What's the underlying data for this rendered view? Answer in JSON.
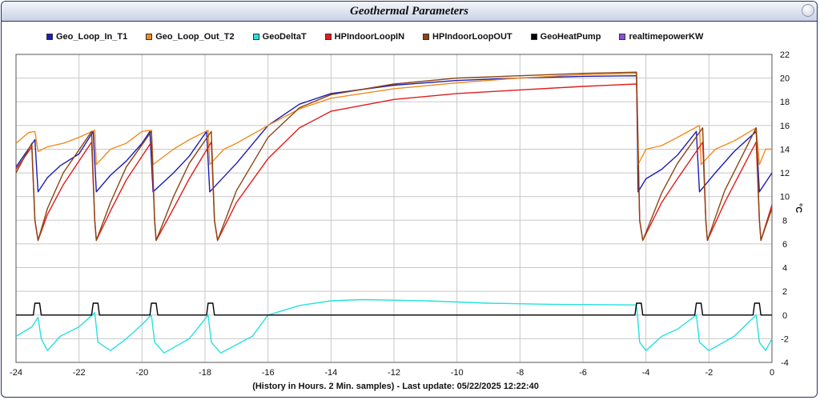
{
  "window": {
    "title": "Geothermal Parameters"
  },
  "chart_data": {
    "type": "line",
    "title": "Geothermal Parameters",
    "xlabel": "(History in Hours. 2 Min. samples) - Last update: 05/22/2025 12:22:40",
    "ylabel": "°C",
    "xlim": [
      -24,
      0
    ],
    "ylim": [
      -4,
      22
    ],
    "x_ticks": [
      -24,
      -22,
      -20,
      -18,
      -16,
      -14,
      -12,
      -10,
      -8,
      -6,
      -4,
      -2,
      0
    ],
    "y_ticks": [
      22,
      20,
      18,
      16,
      14,
      12,
      10,
      8,
      6,
      4,
      2,
      0,
      -2,
      -4
    ],
    "grid": true,
    "legend_position": "top",
    "series": [
      {
        "name": "Geo_Loop_In_T1",
        "color": "#1c1cb8",
        "points": [
          [
            -24,
            12.5
          ],
          [
            -23.4,
            14.8
          ],
          [
            -23.3,
            10.4
          ],
          [
            -23.0,
            11.6
          ],
          [
            -22.6,
            12.6
          ],
          [
            -22.0,
            13.6
          ],
          [
            -21.55,
            15.5
          ],
          [
            -21.45,
            10.4
          ],
          [
            -21.0,
            11.8
          ],
          [
            -20.5,
            13.0
          ],
          [
            -20.0,
            14.5
          ],
          [
            -19.75,
            15.5
          ],
          [
            -19.65,
            10.4
          ],
          [
            -19.0,
            12.0
          ],
          [
            -18.5,
            13.4
          ],
          [
            -17.95,
            15.5
          ],
          [
            -17.85,
            10.4
          ],
          [
            -17.0,
            12.8
          ],
          [
            -16.0,
            16.0
          ],
          [
            -15.0,
            17.8
          ],
          [
            -14.0,
            18.7
          ],
          [
            -12.0,
            19.4
          ],
          [
            -10.0,
            19.8
          ],
          [
            -8.0,
            20.0
          ],
          [
            -6.0,
            20.15
          ],
          [
            -4.3,
            20.2
          ],
          [
            -4.25,
            10.4
          ],
          [
            -4.0,
            11.5
          ],
          [
            -3.5,
            12.3
          ],
          [
            -3.0,
            13.5
          ],
          [
            -2.4,
            15.5
          ],
          [
            -2.3,
            10.4
          ],
          [
            -1.8,
            12.0
          ],
          [
            -1.2,
            13.8
          ],
          [
            -0.5,
            15.5
          ],
          [
            -0.4,
            10.4
          ],
          [
            0,
            12.0
          ]
        ]
      },
      {
        "name": "Geo_Loop_Out_T2",
        "color": "#f08c1e",
        "points": [
          [
            -24,
            14.5
          ],
          [
            -23.6,
            15.4
          ],
          [
            -23.4,
            15.5
          ],
          [
            -23.3,
            13.8
          ],
          [
            -23.0,
            14.2
          ],
          [
            -22.5,
            14.5
          ],
          [
            -22.0,
            15.0
          ],
          [
            -21.5,
            15.6
          ],
          [
            -21.45,
            12.7
          ],
          [
            -21.0,
            14.0
          ],
          [
            -20.5,
            14.5
          ],
          [
            -20.0,
            15.5
          ],
          [
            -19.7,
            15.6
          ],
          [
            -19.65,
            12.7
          ],
          [
            -19.0,
            14.0
          ],
          [
            -18.5,
            14.8
          ],
          [
            -17.9,
            15.6
          ],
          [
            -17.85,
            12.7
          ],
          [
            -17.4,
            14.0
          ],
          [
            -17.0,
            14.5
          ],
          [
            -16.0,
            16.0
          ],
          [
            -15.0,
            17.4
          ],
          [
            -14.0,
            18.3
          ],
          [
            -12.0,
            19.1
          ],
          [
            -10.0,
            19.6
          ],
          [
            -8.0,
            20.0
          ],
          [
            -6.0,
            20.3
          ],
          [
            -4.3,
            20.4
          ],
          [
            -4.25,
            12.7
          ],
          [
            -4.0,
            14.0
          ],
          [
            -3.5,
            14.3
          ],
          [
            -3.0,
            15.0
          ],
          [
            -2.3,
            16.0
          ],
          [
            -2.25,
            12.7
          ],
          [
            -1.8,
            14.0
          ],
          [
            -1.2,
            14.7
          ],
          [
            -0.5,
            15.8
          ],
          [
            -0.4,
            12.7
          ],
          [
            -0.2,
            14.0
          ],
          [
            0,
            14.0
          ]
        ]
      },
      {
        "name": "GeoDeltaT",
        "color": "#26e0e0",
        "points": [
          [
            -24,
            -1.8
          ],
          [
            -23.5,
            -1.0
          ],
          [
            -23.3,
            -0.2
          ],
          [
            -23.2,
            -2.0
          ],
          [
            -23.0,
            -3.0
          ],
          [
            -22.6,
            -1.8
          ],
          [
            -22.0,
            -1.0
          ],
          [
            -21.5,
            0.2
          ],
          [
            -21.4,
            -2.3
          ],
          [
            -21.0,
            -3.0
          ],
          [
            -20.5,
            -2.0
          ],
          [
            -20.0,
            -0.8
          ],
          [
            -19.7,
            0.0
          ],
          [
            -19.6,
            -2.3
          ],
          [
            -19.3,
            -3.2
          ],
          [
            -18.5,
            -2.0
          ],
          [
            -17.9,
            0.0
          ],
          [
            -17.8,
            -2.3
          ],
          [
            -17.5,
            -3.2
          ],
          [
            -16.5,
            -1.8
          ],
          [
            -16.0,
            0.0
          ],
          [
            -15.0,
            0.8
          ],
          [
            -14.0,
            1.2
          ],
          [
            -13.0,
            1.3
          ],
          [
            -11.0,
            1.2
          ],
          [
            -9.0,
            1.0
          ],
          [
            -7.0,
            0.9
          ],
          [
            -4.3,
            0.85
          ],
          [
            -4.2,
            -2.3
          ],
          [
            -4.0,
            -3.0
          ],
          [
            -3.5,
            -1.8
          ],
          [
            -3.0,
            -1.2
          ],
          [
            -2.4,
            0.0
          ],
          [
            -2.3,
            -2.3
          ],
          [
            -2.0,
            -3.0
          ],
          [
            -1.2,
            -1.8
          ],
          [
            -0.5,
            0.0
          ],
          [
            -0.4,
            -2.3
          ],
          [
            -0.2,
            -3.0
          ],
          [
            0,
            -2.0
          ]
        ]
      },
      {
        "name": "HPIndoorLoopIN",
        "color": "#e01c1c",
        "points": [
          [
            -24,
            12.3
          ],
          [
            -23.5,
            14.2
          ],
          [
            -23.4,
            8.0
          ],
          [
            -23.3,
            6.3
          ],
          [
            -23.0,
            8.5
          ],
          [
            -22.5,
            11.0
          ],
          [
            -21.6,
            14.6
          ],
          [
            -21.5,
            8.0
          ],
          [
            -21.45,
            6.3
          ],
          [
            -21.0,
            8.8
          ],
          [
            -20.5,
            11.4
          ],
          [
            -19.7,
            14.6
          ],
          [
            -19.6,
            8.0
          ],
          [
            -19.55,
            6.3
          ],
          [
            -19.0,
            9.0
          ],
          [
            -18.5,
            11.5
          ],
          [
            -17.8,
            14.6
          ],
          [
            -17.7,
            8.0
          ],
          [
            -17.6,
            6.3
          ],
          [
            -17.0,
            9.5
          ],
          [
            -16.0,
            13.2
          ],
          [
            -15.0,
            15.8
          ],
          [
            -14.0,
            17.2
          ],
          [
            -12.0,
            18.2
          ],
          [
            -10.0,
            18.7
          ],
          [
            -8.0,
            19.0
          ],
          [
            -6.0,
            19.3
          ],
          [
            -4.3,
            19.5
          ],
          [
            -4.2,
            8.0
          ],
          [
            -4.1,
            6.3
          ],
          [
            -3.5,
            9.5
          ],
          [
            -3.0,
            11.5
          ],
          [
            -2.2,
            14.6
          ],
          [
            -2.1,
            8.0
          ],
          [
            -2.05,
            6.3
          ],
          [
            -1.5,
            9.5
          ],
          [
            -0.5,
            14.6
          ],
          [
            -0.4,
            8.0
          ],
          [
            -0.35,
            6.3
          ],
          [
            0,
            9.3
          ]
        ]
      },
      {
        "name": "HPIndoorLoopOUT",
        "color": "#8b4513",
        "points": [
          [
            -24,
            12.0
          ],
          [
            -23.5,
            14.5
          ],
          [
            -23.4,
            8.0
          ],
          [
            -23.3,
            6.3
          ],
          [
            -23.0,
            9.0
          ],
          [
            -22.5,
            12.0
          ],
          [
            -21.6,
            15.5
          ],
          [
            -21.5,
            8.0
          ],
          [
            -21.45,
            6.3
          ],
          [
            -21.0,
            9.5
          ],
          [
            -20.5,
            12.5
          ],
          [
            -19.7,
            15.5
          ],
          [
            -19.6,
            8.0
          ],
          [
            -19.55,
            6.3
          ],
          [
            -19.0,
            10.0
          ],
          [
            -18.5,
            12.8
          ],
          [
            -17.8,
            15.5
          ],
          [
            -17.7,
            8.0
          ],
          [
            -17.6,
            6.3
          ],
          [
            -17.0,
            10.5
          ],
          [
            -16.0,
            15.0
          ],
          [
            -15.0,
            17.5
          ],
          [
            -14.0,
            18.6
          ],
          [
            -12.0,
            19.5
          ],
          [
            -10.0,
            20.0
          ],
          [
            -8.0,
            20.2
          ],
          [
            -6.0,
            20.4
          ],
          [
            -4.3,
            20.5
          ],
          [
            -4.2,
            8.0
          ],
          [
            -4.1,
            6.3
          ],
          [
            -3.5,
            10.3
          ],
          [
            -3.0,
            12.8
          ],
          [
            -2.2,
            15.8
          ],
          [
            -2.1,
            8.0
          ],
          [
            -2.05,
            6.3
          ],
          [
            -1.5,
            10.5
          ],
          [
            -0.5,
            15.8
          ],
          [
            -0.4,
            8.0
          ],
          [
            -0.35,
            6.3
          ],
          [
            0,
            9.0
          ]
        ]
      },
      {
        "name": "GeoHeatPump",
        "color": "#000000",
        "points": [
          [
            -24,
            0
          ],
          [
            -23.45,
            0
          ],
          [
            -23.4,
            1
          ],
          [
            -23.25,
            1
          ],
          [
            -23.2,
            0
          ],
          [
            -21.6,
            0
          ],
          [
            -21.55,
            1
          ],
          [
            -21.4,
            1
          ],
          [
            -21.35,
            0
          ],
          [
            -19.75,
            0
          ],
          [
            -19.7,
            1
          ],
          [
            -19.55,
            1
          ],
          [
            -19.5,
            0
          ],
          [
            -17.95,
            0
          ],
          [
            -17.9,
            1
          ],
          [
            -17.75,
            1
          ],
          [
            -17.7,
            0
          ],
          [
            -4.35,
            0
          ],
          [
            -4.3,
            1
          ],
          [
            -4.15,
            1
          ],
          [
            -4.1,
            0
          ],
          [
            -2.45,
            0
          ],
          [
            -2.4,
            1
          ],
          [
            -2.25,
            1
          ],
          [
            -2.2,
            0
          ],
          [
            -0.6,
            0
          ],
          [
            -0.55,
            1
          ],
          [
            -0.4,
            1
          ],
          [
            -0.35,
            0
          ],
          [
            0,
            0
          ]
        ]
      },
      {
        "name": "realtimepowerKW",
        "color": "#8a4ee6",
        "points": []
      }
    ]
  }
}
